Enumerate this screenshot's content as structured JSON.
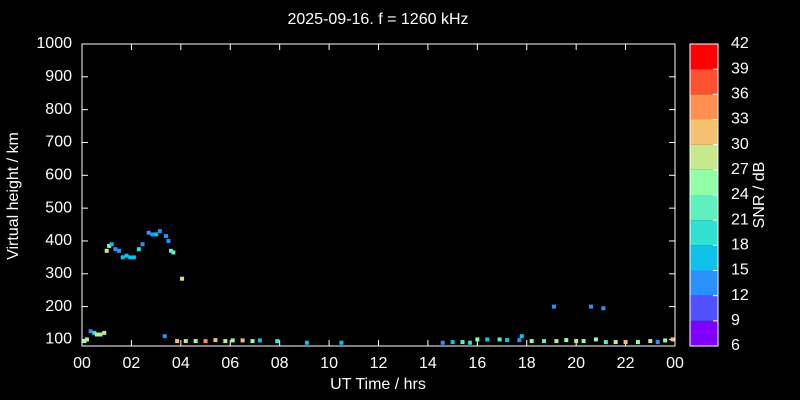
{
  "chart_data": {
    "type": "scatter",
    "title": "2025-09-16. f = 1260 kHz",
    "x_label": "UT Time / hrs",
    "y_label": "Virtual height / km",
    "xlim": [
      0,
      24
    ],
    "ylim": [
      80,
      1000
    ],
    "xticks": [
      {
        "value": 0,
        "label": "00"
      },
      {
        "value": 2,
        "label": "02"
      },
      {
        "value": 4,
        "label": "04"
      },
      {
        "value": 6,
        "label": "06"
      },
      {
        "value": 8,
        "label": "08"
      },
      10,
      12,
      14,
      16,
      18,
      20,
      22,
      {
        "value": 24,
        "label": "00"
      }
    ],
    "yticks": [
      100,
      200,
      300,
      400,
      500,
      600,
      700,
      800,
      900,
      1000
    ],
    "series": [
      {
        "x": [
          0.1,
          0.2,
          0.35,
          0.5,
          0.6,
          0.75,
          0.9,
          1.0,
          1.1,
          1.2,
          1.35,
          1.5,
          1.65,
          1.8,
          1.95,
          2.1,
          2.3,
          2.45,
          2.7,
          2.85,
          3.0,
          3.15,
          3.35,
          3.4,
          3.5,
          3.6,
          3.7,
          4.05,
          3.85,
          4.2,
          4.6,
          5.0,
          5.4,
          5.8,
          6.1,
          6.5,
          6.9,
          7.2,
          7.9,
          9.1,
          10.5,
          14.6,
          15.0,
          15.4,
          15.7,
          16.0,
          16.4,
          16.9,
          17.2,
          17.7,
          17.8,
          18.2,
          18.7,
          19.1,
          19.2,
          19.6,
          20.0,
          20.3,
          20.6,
          20.8,
          21.1,
          21.2,
          21.6,
          22.0,
          22.5,
          23.0,
          23.3,
          23.6,
          23.9
        ],
        "values": [
          95,
          100,
          125,
          120,
          115,
          115,
          120,
          370,
          385,
          390,
          375,
          370,
          350,
          355,
          350,
          350,
          375,
          390,
          425,
          420,
          420,
          430,
          110,
          415,
          400,
          370,
          365,
          285,
          95,
          95,
          95,
          95,
          98,
          95,
          97,
          97,
          95,
          97,
          95,
          90,
          90,
          90,
          92,
          92,
          90,
          100,
          100,
          100,
          98,
          98,
          110,
          95,
          95,
          200,
          95,
          98,
          95,
          95,
          200,
          100,
          195,
          92,
          92,
          92,
          92,
          95,
          92,
          97,
          100
        ],
        "snr": [
          24,
          27,
          12,
          18,
          27,
          24,
          27,
          27,
          24,
          15,
          12,
          12,
          15,
          15,
          15,
          15,
          18,
          12,
          12,
          12,
          15,
          12,
          12,
          12,
          12,
          21,
          21,
          27,
          30,
          27,
          24,
          33,
          30,
          27,
          24,
          30,
          24,
          15,
          18,
          15,
          15,
          12,
          15,
          21,
          18,
          24,
          15,
          21,
          15,
          12,
          15,
          24,
          21,
          12,
          27,
          24,
          27,
          24,
          12,
          24,
          12,
          21,
          27,
          30,
          24,
          27,
          12,
          24,
          30
        ]
      }
    ],
    "colorbar": {
      "label": "SNR / dB",
      "lim": [
        6,
        42
      ],
      "ticks": [
        6,
        9,
        12,
        15,
        18,
        21,
        24,
        27,
        30,
        33,
        36,
        39,
        42
      ],
      "colors": [
        "#8000ff",
        "#5050ff",
        "#2890ff",
        "#10c0e8",
        "#30e0d0",
        "#60f0c0",
        "#90ffa8",
        "#c8e890",
        "#f4c070",
        "#ff9050",
        "#ff5030",
        "#ff0000"
      ]
    }
  }
}
